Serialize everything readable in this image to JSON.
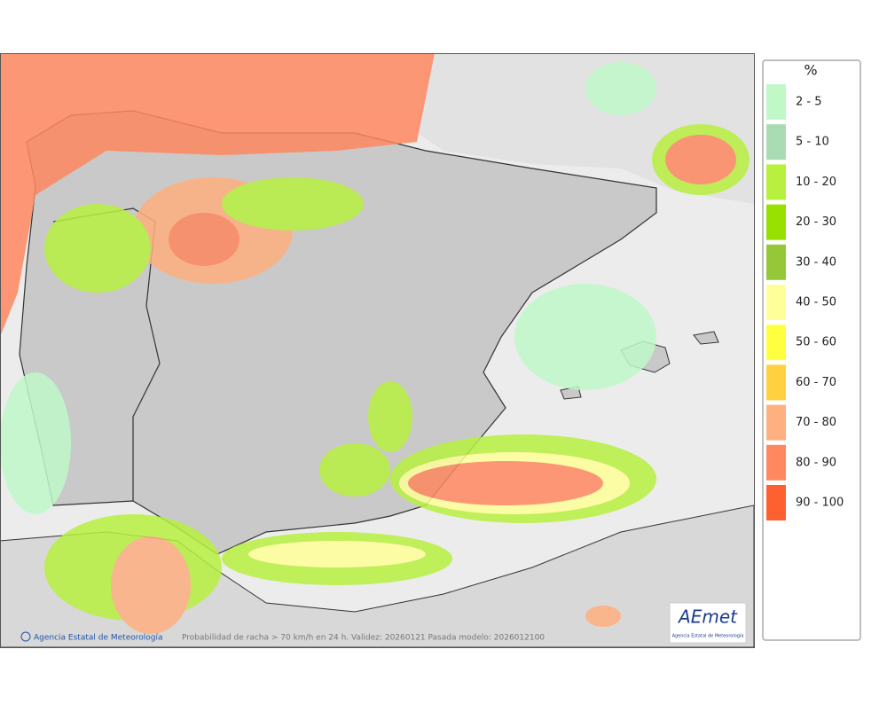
{
  "legend": {
    "title": "%",
    "items": [
      {
        "label": "2 - 5",
        "color": "#c0f8c8"
      },
      {
        "label": "5 - 10",
        "color": "#a9dcb2"
      },
      {
        "label": "10 - 20",
        "color": "#b8f040"
      },
      {
        "label": "20 - 30",
        "color": "#98e000"
      },
      {
        "label": "30 - 40",
        "color": "#94c838"
      },
      {
        "label": "40 - 50",
        "color": "#ffff99"
      },
      {
        "label": "50 - 60",
        "color": "#ffff40"
      },
      {
        "label": "60 - 70",
        "color": "#ffd040"
      },
      {
        "label": "70 - 80",
        "color": "#ffb080"
      },
      {
        "label": "80 - 90",
        "color": "#ff8860"
      },
      {
        "label": "90 - 100",
        "color": "#ff6030"
      }
    ]
  },
  "footer": {
    "credit": "Agencia Estatal de Meteorología",
    "caption": "Probabilidad de racha > 70 km/h en 24 h. Validez: 20260121 Pasada modelo: 2026012100"
  },
  "logo": {
    "name": "AEmet",
    "subtitle": "Agencia Estatal de Meteorología"
  }
}
